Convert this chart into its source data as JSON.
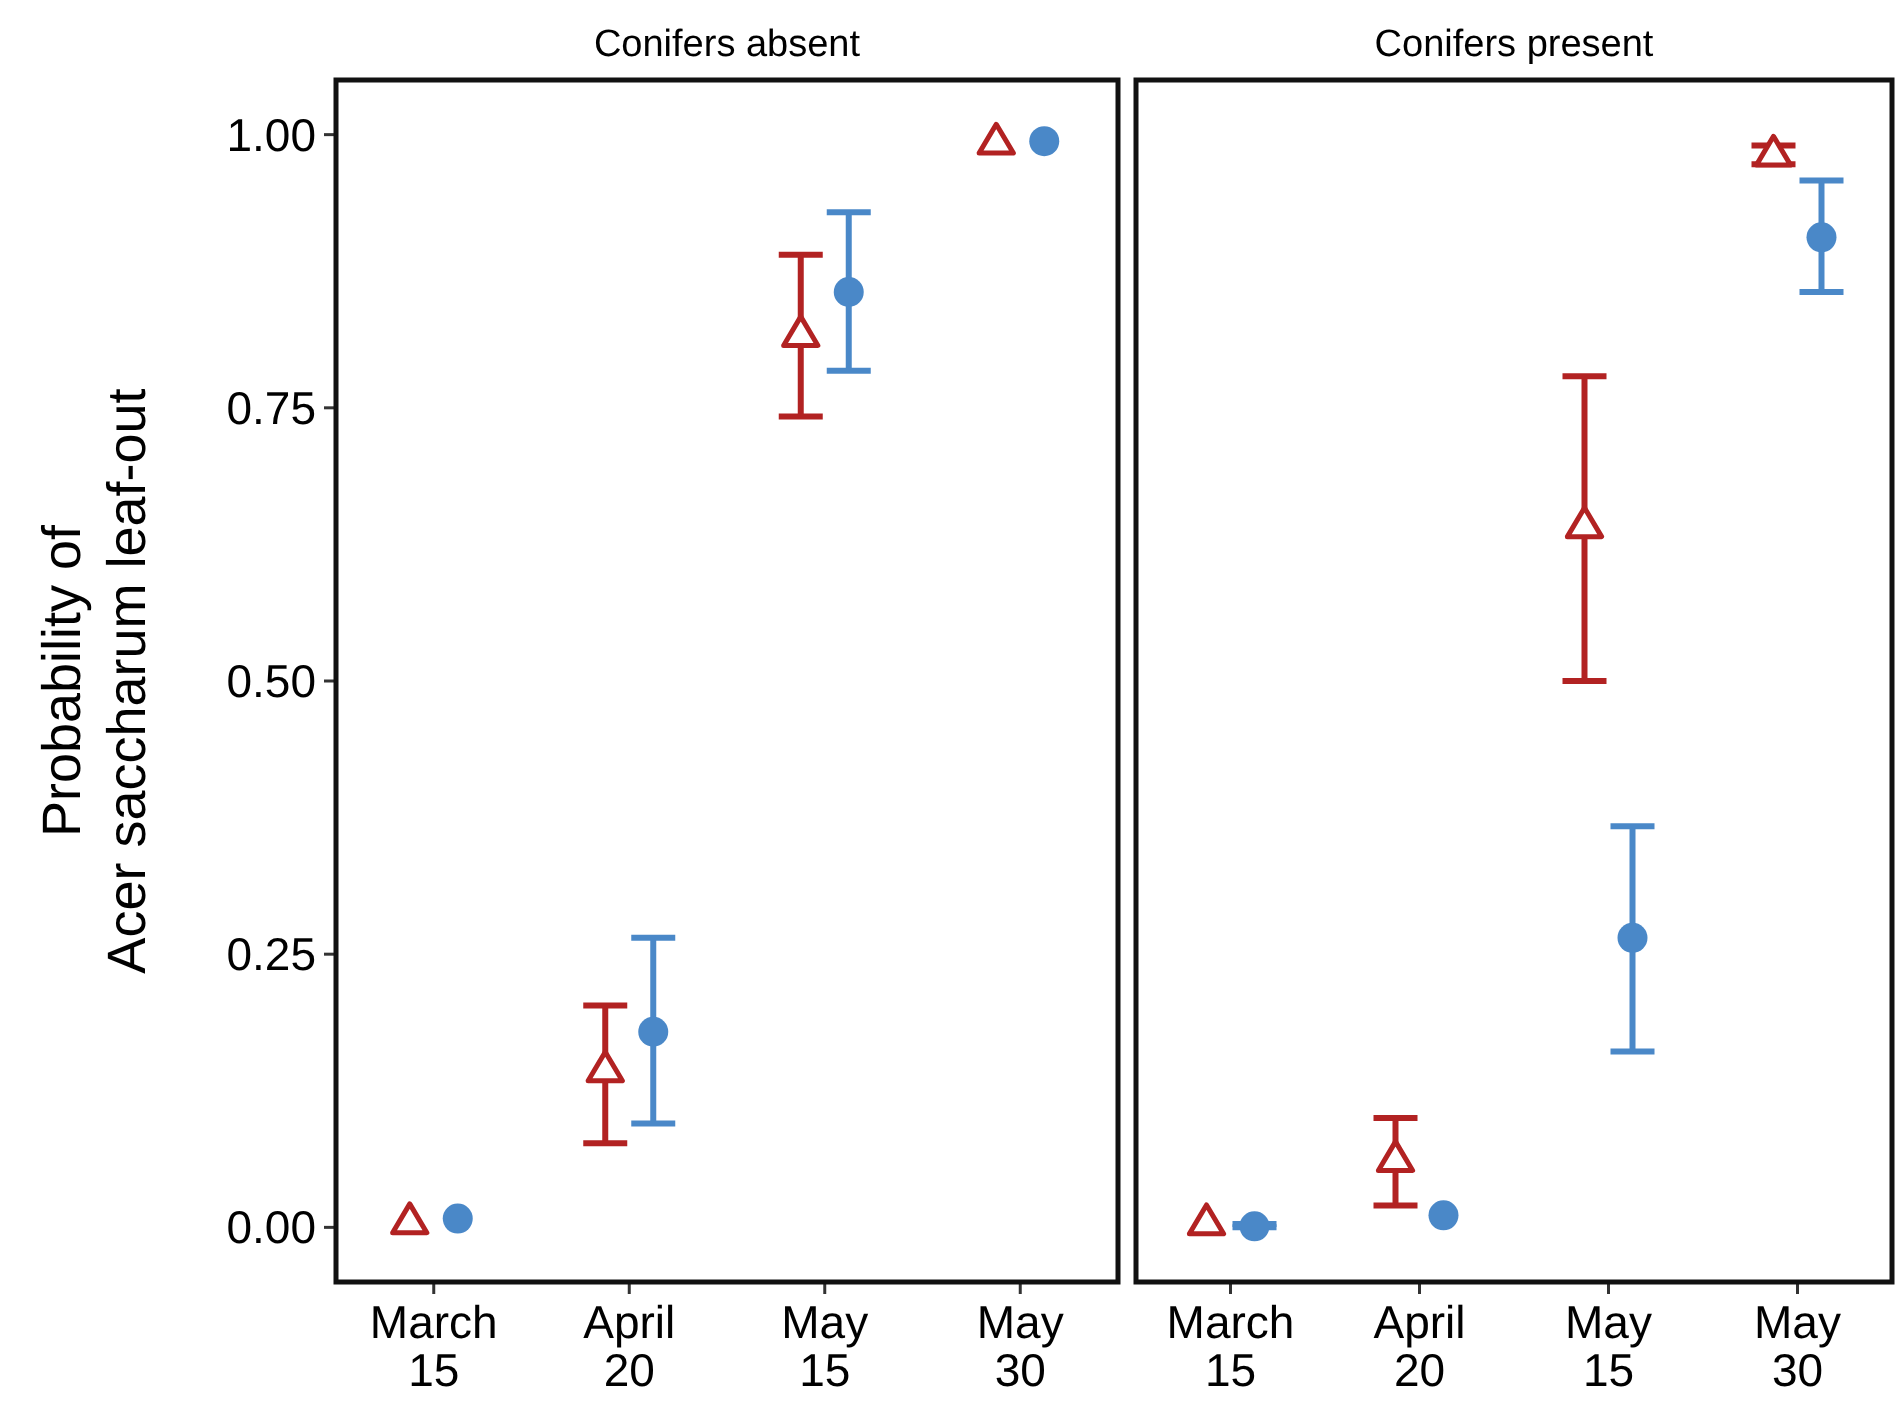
{
  "chart_data": [
    {
      "type": "scatter",
      "title": "Conifers absent",
      "ylabel": "Probability of\nAcer saccharum leaf-out",
      "categories": [
        "March 15",
        "April 20",
        "May 15",
        "May 30"
      ],
      "ylim": [
        -0.05,
        1.05
      ],
      "yticks": [
        {
          "value": 0,
          "label": "0.00"
        },
        {
          "value": 0.25,
          "label": "0.25"
        },
        {
          "value": 0.5,
          "label": "0.50"
        },
        {
          "value": 0.75,
          "label": "0.75"
        },
        {
          "value": 1,
          "label": "1.00"
        }
      ],
      "grid": false,
      "series": [
        {
          "color": "#b22222",
          "marker": "triangle",
          "values": [
            0.005,
            0.144,
            0.817,
            0.993
          ],
          "errors": [
            null,
            [
              0.077,
              0.203
            ],
            [
              0.742,
              0.89
            ],
            null
          ]
        },
        {
          "color": "#4a88c8",
          "marker": "circle",
          "values": [
            0.008,
            0.179,
            0.856,
            0.994
          ],
          "errors": [
            null,
            [
              0.095,
              0.265
            ],
            [
              0.784,
              0.929
            ],
            null
          ]
        }
      ]
    },
    {
      "type": "scatter",
      "title": "Conifers present",
      "categories": [
        "March 15",
        "April 20",
        "May 15",
        "May 30"
      ],
      "ylim": [
        -0.05,
        1.05
      ],
      "tick_labels": "x",
      "grid": false,
      "series": [
        {
          "color": "#b22222",
          "marker": "triangle",
          "values": [
            0.004,
            0.062,
            0.642,
            0.982
          ],
          "errors": [
            null,
            [
              0.02,
              0.1
            ],
            [
              0.5,
              0.779
            ],
            [
              0.973,
              0.99
            ]
          ]
        },
        {
          "color": "#4a88c8",
          "marker": "circle",
          "values": [
            0.001,
            0.011,
            0.265,
            0.906
          ],
          "errors": [
            [
              0,
              0.003
            ],
            null,
            [
              0.161,
              0.367
            ],
            [
              0.856,
              0.958
            ]
          ]
        }
      ]
    }
  ]
}
